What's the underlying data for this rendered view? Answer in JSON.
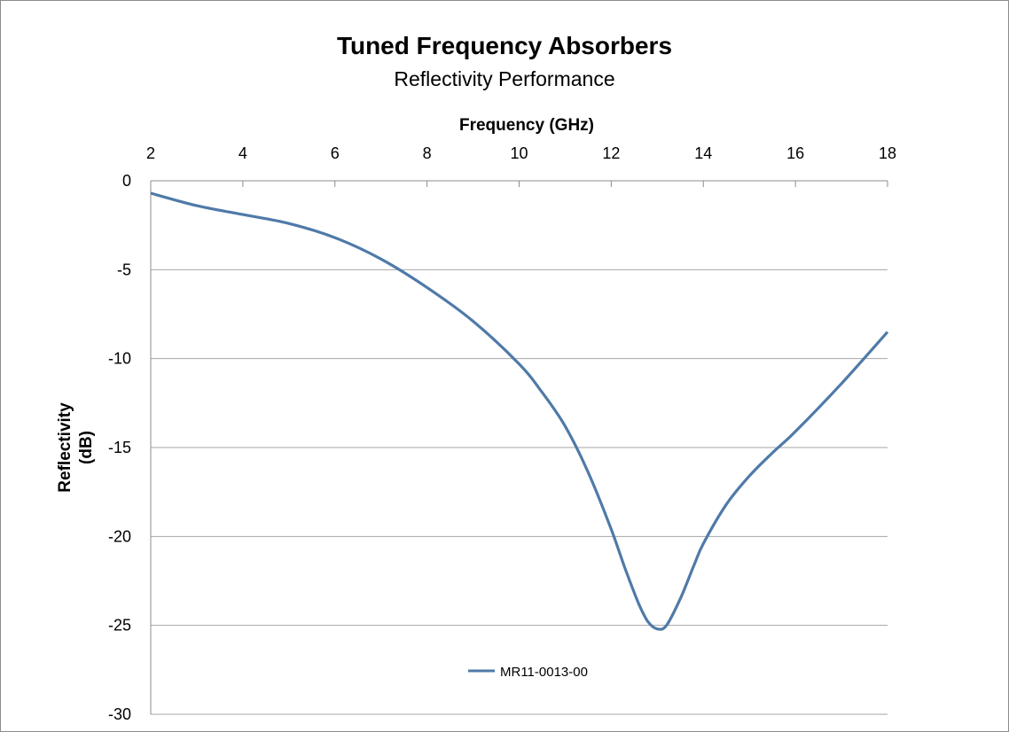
{
  "chart_data": {
    "type": "line",
    "title": "Tuned Frequency Absorbers",
    "subtitle": "Reflectivity Performance",
    "xlabel": "Frequency (GHz)",
    "ylabel_lines": [
      "Reflectivity",
      "(dB)"
    ],
    "xlim": [
      2,
      18
    ],
    "ylim": [
      -30,
      0
    ],
    "xticks": [
      2,
      4,
      6,
      8,
      10,
      12,
      14,
      16,
      18
    ],
    "yticks": [
      0,
      -5,
      -10,
      -15,
      -20,
      -25,
      -30
    ],
    "x_axis_position": "top",
    "grid": "horizontal",
    "legend_position": "bottom-center",
    "series": [
      {
        "name": "MR11-0013-00",
        "color": "#4f7aa8",
        "x": [
          2,
          3,
          4,
          5,
          6,
          7,
          8,
          9,
          10,
          10.5,
          11,
          11.5,
          12,
          12.3,
          12.6,
          12.8,
          13,
          13.2,
          13.5,
          13.8,
          14,
          14.5,
          15,
          15.5,
          16,
          17,
          18
        ],
        "y": [
          -0.7,
          -1.4,
          -1.9,
          -2.4,
          -3.2,
          -4.4,
          -6.0,
          -7.9,
          -10.3,
          -11.9,
          -13.8,
          -16.4,
          -19.6,
          -21.8,
          -23.8,
          -24.8,
          -25.2,
          -25.0,
          -23.5,
          -21.6,
          -20.4,
          -18.2,
          -16.6,
          -15.3,
          -14.1,
          -11.4,
          -8.5
        ]
      }
    ]
  }
}
